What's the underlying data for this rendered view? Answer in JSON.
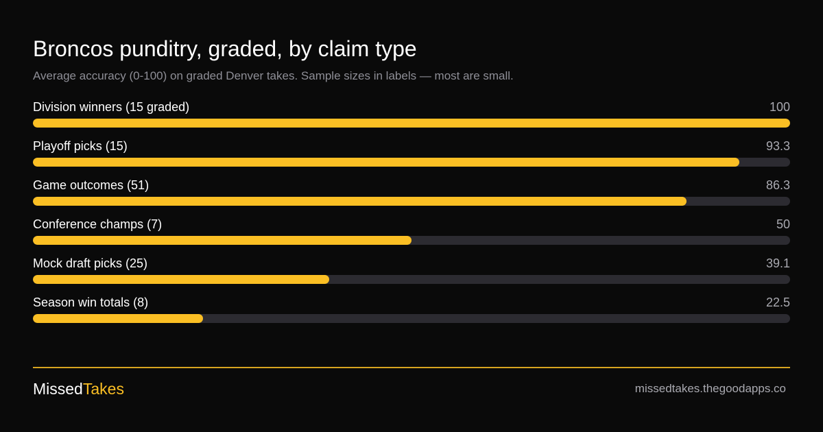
{
  "header": {
    "title": "Broncos punditry, graded, by claim type",
    "subtitle": "Average accuracy (0-100) on graded Denver takes. Sample sizes in labels — most are small."
  },
  "chart_data": {
    "type": "bar",
    "orientation": "horizontal",
    "title": "Broncos punditry, graded, by claim type",
    "subtitle": "Average accuracy (0-100) on graded Denver takes. Sample sizes in labels — most are small.",
    "xlim": [
      0,
      100
    ],
    "categories": [
      "Division winners (15 graded)",
      "Playoff picks (15)",
      "Game outcomes (51)",
      "Conference champs (7)",
      "Mock draft picks (25)",
      "Season win totals (8)"
    ],
    "values": [
      100,
      93.3,
      86.3,
      50,
      39.1,
      22.5
    ],
    "value_labels": [
      "100",
      "93.3",
      "86.3",
      "50",
      "39.1",
      "22.5"
    ],
    "grid": false,
    "legend": "none",
    "colors": {
      "bar": "#fbbf24",
      "track": "#2c2b31"
    }
  },
  "footer": {
    "brand_part1": "Missed",
    "brand_part2": "Takes",
    "site": "missedtakes.thegoodapps.co"
  },
  "colors": {
    "background": "#0a0a0a",
    "accent": "#fbbf24"
  }
}
